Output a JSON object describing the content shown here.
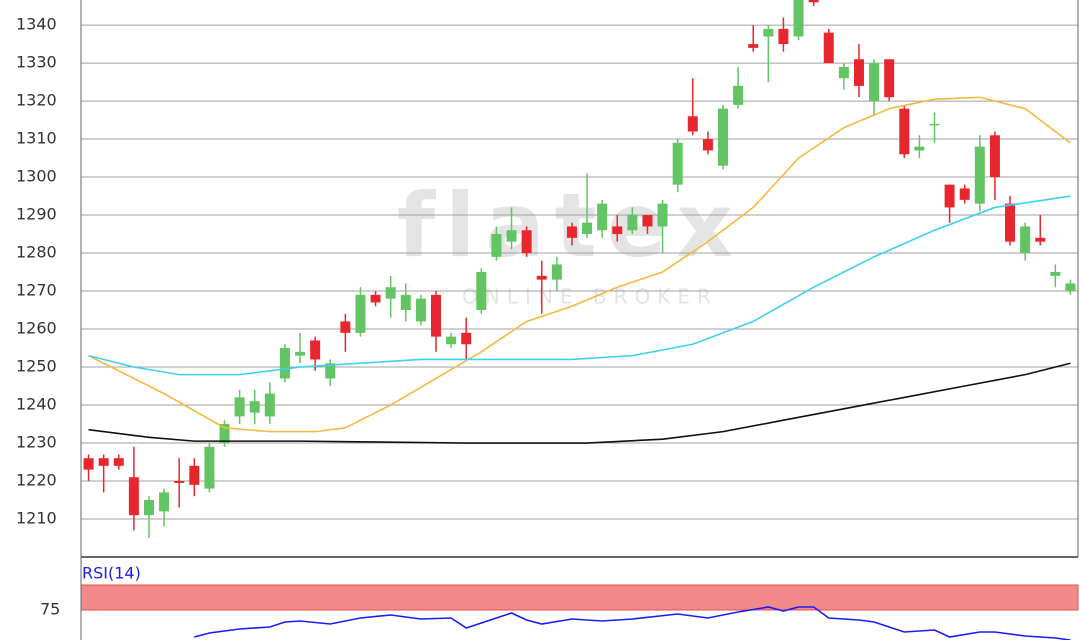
{
  "chart_data": [
    {
      "type": "candlestick",
      "watermark": "flatex",
      "watermark_sub": "ONLINE BROKER",
      "ylim": [
        1200,
        1346.6
      ],
      "yticks": [
        1210,
        1220,
        1230,
        1240,
        1250,
        1260,
        1270,
        1280,
        1290,
        1300,
        1310,
        1320,
        1330,
        1340
      ],
      "xlim": [
        -0.5,
        65.5
      ],
      "grid": true,
      "up_color": "#62c462",
      "down_color": "#e8262e",
      "open": [
        1226,
        1226,
        1226,
        1221,
        1211,
        1212,
        1220,
        1224,
        1218,
        1230,
        1237,
        1238,
        1237,
        1247,
        1253,
        1257,
        1247,
        1262,
        1259,
        1269,
        1268,
        1265,
        1262,
        1269,
        1256,
        1259,
        1265,
        1279,
        1283,
        1286,
        1274,
        1273,
        1287,
        1285,
        1286,
        1287,
        1286,
        1290,
        1287,
        1298,
        1316,
        1310,
        1303,
        1319,
        1335,
        1337,
        1339,
        1337,
        1348,
        1338,
        1326,
        1331,
        1320,
        1331,
        1318,
        1307,
        1314,
        1298,
        1297,
        1293,
        1311,
        1293,
        1280,
        1284,
        1274,
        1270
      ],
      "high": [
        1227,
        1227,
        1227,
        1229,
        1216,
        1218,
        1226,
        1226,
        1230,
        1236,
        1244,
        1244,
        1246,
        1256,
        1259,
        1258,
        1252,
        1264,
        1271,
        1270,
        1274,
        1272,
        1269,
        1270,
        1259,
        1263,
        1276,
        1287,
        1292,
        1287,
        1278,
        1279,
        1288,
        1301,
        1294,
        1290,
        1292,
        1290,
        1294,
        1310,
        1326,
        1312,
        1319,
        1329,
        1340,
        1340,
        1342,
        1347,
        1349,
        1339,
        1330,
        1335,
        1331,
        1331,
        1319,
        1311,
        1317,
        1298,
        1298,
        1311,
        1312,
        1295,
        1288,
        1290,
        1277,
        1273
      ],
      "low": [
        1220,
        1217,
        1223,
        1207,
        1205,
        1208,
        1213,
        1216,
        1217,
        1229,
        1235,
        1235,
        1235,
        1246,
        1251,
        1249,
        1245,
        1254,
        1258,
        1266,
        1263,
        1262,
        1261,
        1254,
        1255,
        1252,
        1264,
        1278,
        1281,
        1279,
        1264,
        1270,
        1282,
        1284,
        1284,
        1283,
        1285,
        1285,
        1280,
        1296,
        1311,
        1306,
        1302,
        1318,
        1333,
        1325,
        1333,
        1336,
        1345,
        1330,
        1323,
        1321,
        1316,
        1320,
        1305,
        1305,
        1309,
        1288,
        1293,
        1291,
        1294,
        1282,
        1278,
        1282,
        1271,
        1269
      ],
      "close": [
        1223,
        1224,
        1224,
        1211,
        1215,
        1217,
        1219.5,
        1219,
        1229,
        1235,
        1242,
        1241,
        1243,
        1255,
        1254,
        1252,
        1251,
        1259,
        1269,
        1267,
        1271,
        1269,
        1268,
        1258,
        1258,
        1256,
        1275,
        1285,
        1286,
        1280,
        1273,
        1277,
        1284,
        1288,
        1293,
        1285,
        1290,
        1287,
        1293,
        1309,
        1312,
        1307,
        1318,
        1324,
        1334,
        1339,
        1335,
        1347,
        1346,
        1330,
        1329,
        1324,
        1330,
        1321,
        1306,
        1308,
        1314,
        1292,
        1294,
        1308,
        1300,
        1283,
        1287,
        1283,
        1275,
        1272
      ],
      "series": [
        {
          "color": "#f5b942",
          "x": [
            0,
            5,
            9,
            12,
            15,
            17,
            20,
            23,
            26,
            29,
            32,
            35,
            38,
            41,
            44,
            47,
            50,
            53,
            56,
            59,
            62,
            65
          ],
          "values": [
            1253,
            1243,
            1234,
            1233,
            1233,
            1234,
            1240,
            1247,
            1254,
            1262,
            1266,
            1271,
            1275,
            1283,
            1292,
            1305,
            1313,
            1318,
            1320.5,
            1321,
            1318,
            1309
          ]
        },
        {
          "color": "#3fd0f0",
          "x": [
            0,
            3,
            6,
            10,
            14,
            18,
            22,
            27,
            32,
            36,
            40,
            44,
            48,
            52,
            56,
            60,
            65
          ],
          "values": [
            1253,
            1250,
            1248,
            1248,
            1250,
            1251,
            1252,
            1252,
            1252,
            1253,
            1256,
            1262,
            1271,
            1279,
            1286,
            1292,
            1295
          ]
        },
        {
          "color": "#111111",
          "x": [
            0,
            4,
            7,
            14,
            25,
            33,
            38,
            42,
            46,
            50,
            54,
            58,
            62,
            65
          ],
          "values": [
            1233.5,
            1231.5,
            1230.5,
            1230.5,
            1230,
            1230,
            1231,
            1233,
            1236,
            1239,
            1242,
            1245,
            1248,
            1251
          ]
        }
      ]
    },
    {
      "type": "line",
      "title": "RSI(14)",
      "ylim": [
        45,
        100
      ],
      "yticks": [
        75
      ],
      "xlim": [
        -0.5,
        65.5
      ],
      "band": [
        75,
        100
      ],
      "band_color": "#f28a8a",
      "series": [
        {
          "color": "#1c1cf0",
          "x": [
            7,
            8,
            10,
            12,
            13,
            14,
            16,
            18,
            20,
            22,
            24,
            25,
            27,
            28,
            29,
            30,
            32,
            34,
            36,
            39,
            41,
            43,
            45,
            46,
            47,
            48,
            49,
            51,
            52,
            54,
            56,
            57,
            59,
            60,
            62,
            64,
            65
          ],
          "values": [
            48,
            52,
            56,
            58,
            63,
            64,
            61,
            67,
            70,
            66,
            67,
            57,
            67,
            72,
            65,
            61,
            66,
            64,
            66,
            71,
            67,
            73,
            78,
            74,
            78,
            78,
            67,
            65,
            63,
            53,
            55,
            48,
            53,
            53,
            49,
            47,
            45
          ]
        }
      ]
    }
  ]
}
